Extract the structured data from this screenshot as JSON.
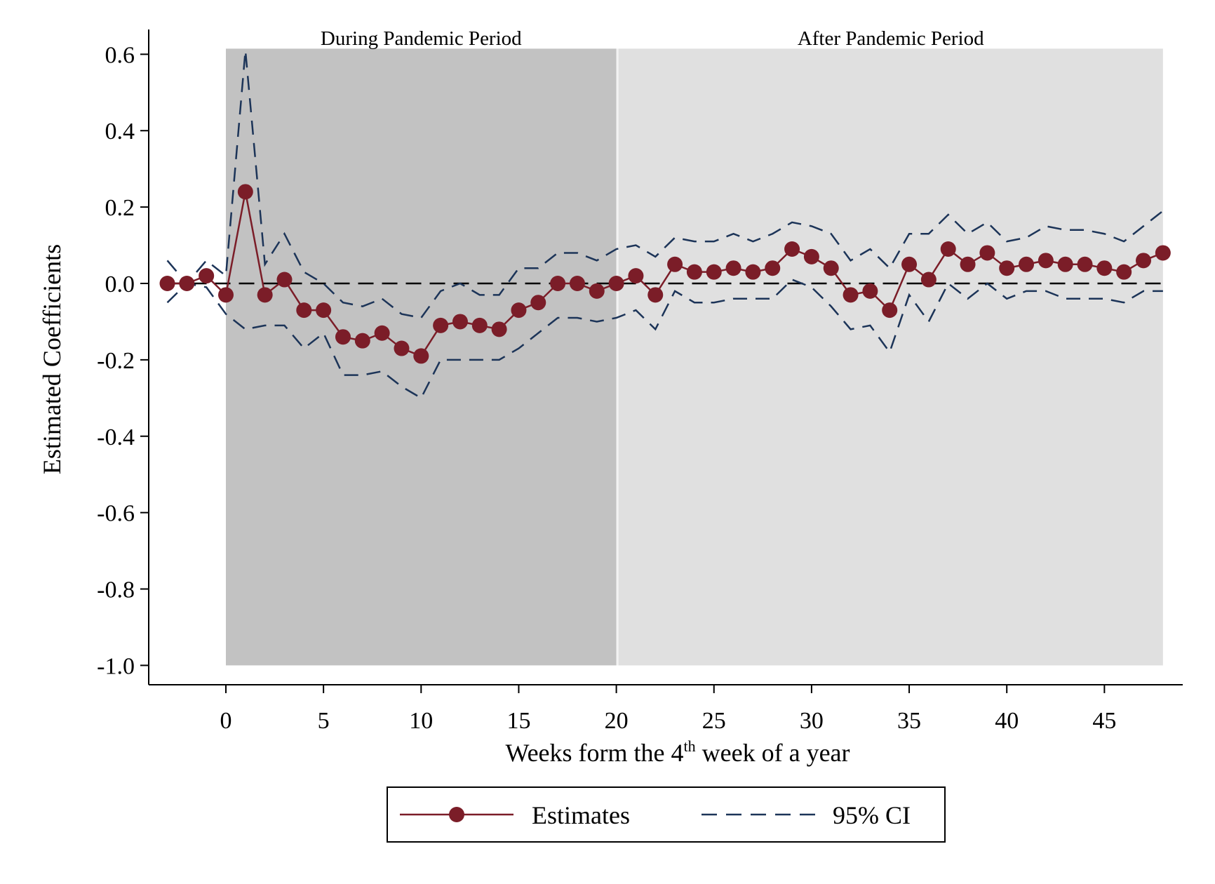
{
  "chart_data": {
    "type": "line",
    "xlabel_main": "Weeks form the 4",
    "xlabel_sup": "th",
    "xlabel_rest": " week of a year",
    "ylabel": "Estimated Coefficients",
    "xlim": [
      -3,
      48
    ],
    "ylim": [
      -1.0,
      0.6
    ],
    "xticks": [
      0,
      5,
      10,
      15,
      20,
      25,
      30,
      35,
      40,
      45
    ],
    "yticks": [
      0.6,
      0.4,
      0.2,
      0.0,
      -0.2,
      -0.4,
      -0.6,
      -0.8,
      -1.0
    ],
    "ytick_labels": [
      "0.6",
      "0.4",
      "0.2",
      "0.0",
      "-0.2",
      "-0.4",
      "-0.6",
      "-0.8",
      "-1.0"
    ],
    "grid": false,
    "reference_line": 0.0,
    "periods": [
      {
        "label": "During Pandemic Period",
        "x_start": 0,
        "x_end": 20,
        "color": "#c2c2c2"
      },
      {
        "label": "After Pandemic Period",
        "x_start": 20,
        "x_end": 48,
        "color": "#e0e0e0"
      }
    ],
    "x": [
      -3,
      -2,
      -1,
      0,
      1,
      2,
      3,
      4,
      5,
      6,
      7,
      8,
      9,
      10,
      11,
      12,
      13,
      14,
      15,
      16,
      17,
      18,
      19,
      20,
      21,
      22,
      23,
      24,
      25,
      26,
      27,
      28,
      29,
      30,
      31,
      32,
      33,
      34,
      35,
      36,
      37,
      38,
      39,
      40,
      41,
      42,
      43,
      44,
      45,
      46,
      47,
      48
    ],
    "series": [
      {
        "name": "Estimates",
        "color": "#7b1d28",
        "style": "solid-markers",
        "values": [
          0.0,
          0.0,
          0.02,
          -0.03,
          0.24,
          -0.03,
          0.01,
          -0.07,
          -0.07,
          -0.14,
          -0.15,
          -0.13,
          -0.17,
          -0.19,
          -0.11,
          -0.1,
          -0.11,
          -0.12,
          -0.07,
          -0.05,
          0.0,
          0.0,
          -0.02,
          0.0,
          0.02,
          -0.03,
          0.05,
          0.03,
          0.03,
          0.04,
          0.03,
          0.04,
          0.09,
          0.07,
          0.04,
          -0.03,
          -0.02,
          -0.07,
          0.05,
          0.01,
          0.09,
          0.05,
          0.08,
          0.04,
          0.05,
          0.06,
          0.05,
          0.05,
          0.04,
          0.03,
          0.06,
          0.08
        ]
      },
      {
        "name": "95% CI",
        "color": "#1c3458",
        "style": "dashed",
        "upper": [
          0.06,
          0.0,
          0.06,
          0.02,
          0.61,
          0.05,
          0.13,
          0.03,
          0.0,
          -0.05,
          -0.06,
          -0.04,
          -0.08,
          -0.09,
          -0.02,
          0.0,
          -0.03,
          -0.03,
          0.04,
          0.04,
          0.08,
          0.08,
          0.06,
          0.09,
          0.1,
          0.07,
          0.12,
          0.11,
          0.11,
          0.13,
          0.11,
          0.13,
          0.16,
          0.15,
          0.13,
          0.06,
          0.09,
          0.04,
          0.13,
          0.13,
          0.18,
          0.13,
          0.16,
          0.11,
          0.12,
          0.15,
          0.14,
          0.14,
          0.13,
          0.11,
          0.15,
          0.19
        ],
        "lower": [
          -0.05,
          0.0,
          -0.01,
          -0.08,
          -0.12,
          -0.11,
          -0.11,
          -0.17,
          -0.13,
          -0.24,
          -0.24,
          -0.23,
          -0.27,
          -0.3,
          -0.2,
          -0.2,
          -0.2,
          -0.2,
          -0.17,
          -0.13,
          -0.09,
          -0.09,
          -0.1,
          -0.09,
          -0.07,
          -0.12,
          -0.02,
          -0.05,
          -0.05,
          -0.04,
          -0.04,
          -0.04,
          0.01,
          -0.01,
          -0.06,
          -0.12,
          -0.11,
          -0.18,
          -0.03,
          -0.1,
          0.0,
          -0.04,
          0.0,
          -0.04,
          -0.02,
          -0.02,
          -0.04,
          -0.04,
          -0.04,
          -0.05,
          -0.02,
          -0.02
        ]
      }
    ],
    "legend": {
      "position": "bottom-center",
      "entries": [
        "Estimates",
        "95% CI"
      ]
    }
  }
}
